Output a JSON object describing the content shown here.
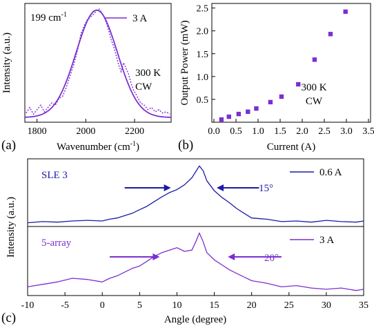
{
  "chart_data": [
    {
      "panel": "(a)",
      "type": "line",
      "xlabel": "Wavenumber (cm-1)",
      "ylabel": "Intensity (a.u.)",
      "xlim": [
        1750,
        2350
      ],
      "ylim": [
        0,
        1.05
      ],
      "xticks": [
        1800,
        2000,
        2200
      ],
      "annotations": [
        "199 cm-1",
        "300 K",
        "CW"
      ],
      "legend": {
        "label": "3 A",
        "position": "top-right"
      },
      "color": "#7b2fd0",
      "series": [
        {
          "name": "3 A",
          "style": "dotted-measured",
          "x": [
            1755,
            1770,
            1785,
            1800,
            1815,
            1830,
            1845,
            1860,
            1875,
            1890,
            1905,
            1920,
            1935,
            1950,
            1965,
            1980,
            1995,
            2005,
            2015,
            2025,
            2035,
            2045,
            2055,
            2065,
            2075,
            2085,
            2095,
            2105,
            2115,
            2125,
            2135,
            2145,
            2155,
            2165,
            2175,
            2185,
            2195,
            2205,
            2215,
            2225,
            2240,
            2255,
            2270,
            2285,
            2300,
            2315,
            2330,
            2345
          ],
          "y": [
            0.07,
            0.12,
            0.06,
            0.1,
            0.14,
            0.08,
            0.12,
            0.16,
            0.14,
            0.2,
            0.22,
            0.3,
            0.4,
            0.5,
            0.62,
            0.78,
            0.86,
            0.9,
            0.92,
            0.94,
            0.96,
            0.99,
            1.0,
            0.97,
            0.93,
            0.87,
            0.8,
            0.72,
            0.66,
            0.58,
            0.5,
            0.44,
            0.52,
            0.47,
            0.42,
            0.34,
            0.28,
            0.24,
            0.2,
            0.16,
            0.14,
            0.1,
            0.12,
            0.08,
            0.1,
            0.07,
            0.08,
            0.06
          ]
        },
        {
          "name": "fit",
          "style": "solid-fit",
          "center": 2045,
          "fwhm": 199,
          "amplitude": 0.96,
          "baseline": 0.03
        }
      ]
    },
    {
      "panel": "(b)",
      "type": "scatter",
      "xlabel": "Current (A)",
      "ylabel": "Output Power (mW)",
      "xlim": [
        0,
        3.5
      ],
      "ylim": [
        0,
        2.6
      ],
      "xticks": [
        0.0,
        0.5,
        1.0,
        1.5,
        2.0,
        2.5,
        3.0,
        3.5
      ],
      "yticks": [
        0.5,
        1.0,
        1.5,
        2.0,
        2.5
      ],
      "annotations": [
        "300 K",
        "CW"
      ],
      "color": "#7b2fd0",
      "x": [
        0.17,
        0.34,
        0.56,
        0.77,
        0.96,
        1.28,
        1.53,
        1.91,
        2.28,
        2.64,
        2.98
      ],
      "y": [
        0.06,
        0.12,
        0.18,
        0.23,
        0.3,
        0.44,
        0.56,
        0.83,
        1.37,
        1.93,
        2.42
      ]
    },
    {
      "panel": "(c)",
      "type": "line",
      "xlabel": "Angle (degree)",
      "ylabel": "Intensity (a.u.)",
      "xlim": [
        -10,
        35
      ],
      "xticks": [
        -10,
        -5,
        0,
        5,
        10,
        15,
        20,
        25,
        30,
        35
      ],
      "subplots": [
        {
          "label": "SLE 3",
          "legend": "0.6 A",
          "divergence": "15°",
          "color": "#1a1aa6",
          "ylim": [
            0,
            1.05
          ],
          "angle": [
            -10,
            -8,
            -6,
            -4,
            -2,
            0,
            1,
            2,
            3,
            4,
            5,
            6,
            7,
            8,
            9,
            10,
            11,
            12,
            12.5,
            13,
            13.5,
            14,
            15,
            16,
            17,
            18,
            19,
            20,
            22,
            24,
            26,
            28,
            30,
            32,
            34,
            35
          ],
          "y": [
            0.04,
            0.06,
            0.05,
            0.07,
            0.08,
            0.07,
            0.1,
            0.12,
            0.16,
            0.2,
            0.26,
            0.32,
            0.4,
            0.48,
            0.55,
            0.6,
            0.68,
            0.8,
            0.9,
            1.0,
            0.92,
            0.75,
            0.58,
            0.47,
            0.38,
            0.28,
            0.2,
            0.12,
            0.1,
            0.06,
            0.07,
            0.05,
            0.08,
            0.06,
            0.05,
            0.07
          ]
        },
        {
          "label": "5-array",
          "legend": "3 A",
          "divergence": "20°",
          "color": "#7b2fd0",
          "ylim": [
            0,
            1.05
          ],
          "angle": [
            -10,
            -8,
            -6,
            -4,
            -2,
            0,
            1,
            2,
            3,
            4,
            5,
            6,
            7,
            8,
            9,
            10,
            11,
            12,
            12.5,
            13,
            13.5,
            14,
            15,
            16,
            17,
            18,
            19,
            20,
            22,
            24,
            26,
            28,
            30,
            32,
            34,
            35
          ],
          "y": [
            0.12,
            0.16,
            0.2,
            0.26,
            0.24,
            0.2,
            0.26,
            0.3,
            0.36,
            0.42,
            0.46,
            0.54,
            0.62,
            0.68,
            0.72,
            0.76,
            0.7,
            0.72,
            0.85,
            1.0,
            0.86,
            0.68,
            0.56,
            0.48,
            0.4,
            0.34,
            0.28,
            0.22,
            0.18,
            0.12,
            0.14,
            0.1,
            0.08,
            0.1,
            0.06,
            0.08
          ]
        }
      ]
    }
  ],
  "labels": {
    "a_annot1": "199 cm",
    "a_annot1_sup": "-1",
    "a_annot2": "300 K",
    "a_annot3": "CW",
    "a_legend": "3 A",
    "a_xlabel": "Wavenumber (cm",
    "a_xlabel_sup": "-1",
    "a_xlabel_end": ")",
    "a_ylabel": "Intensity (a.u.)",
    "a_panel": "(a)",
    "b_annot1": "300 K",
    "b_annot2": "CW",
    "b_xlabel": "Current (A)",
    "b_ylabel": "Output Power (mW)",
    "b_panel": "(b)",
    "c1_label": "SLE 3",
    "c1_legend": "0.6 A",
    "c1_div": "15°",
    "c2_label": "5-array",
    "c2_legend": "3 A",
    "c2_div": "20°",
    "c_xlabel": "Angle (degree)",
    "c_ylabel": "Intensity (a.u.)",
    "c_panel": "(c)"
  }
}
